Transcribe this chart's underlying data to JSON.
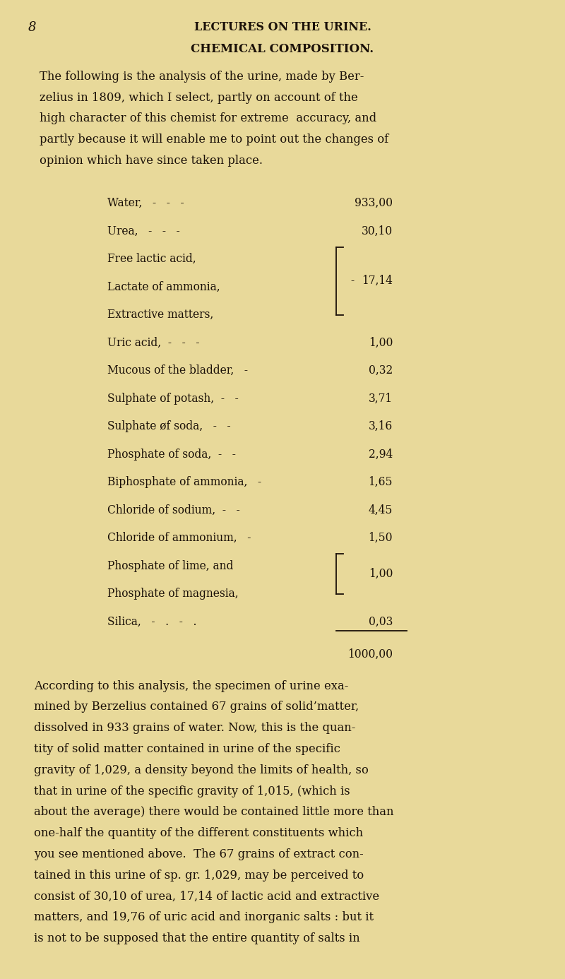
{
  "bg_color": "#e8d99a",
  "text_color": "#1a1008",
  "page_number": "8",
  "header": "LECTURES ON THE URINE.",
  "section_title": "CHEMICAL COMPOSITION.",
  "intro_text": [
    "The following is the analysis of the urine, made by Ber-",
    "zelius in 1809, which I select, partly on account of the",
    "high character of this chemist for extreme  accuracy, and",
    "partly because it will enable me to point out the changes of",
    "opinion which have since taken place."
  ],
  "table_rows": [
    {
      "label": "Water,   -   -   -",
      "value": "933,00",
      "bracket": null
    },
    {
      "label": "Urea,   -   -   -",
      "value": "30,10",
      "bracket": null
    },
    {
      "label": "Free lactic acid,",
      "value": null,
      "bracket": "top"
    },
    {
      "label": "Lactate of ammonia,",
      "value": null,
      "bracket": "mid"
    },
    {
      "label": "Extractive matters,",
      "value": null,
      "bracket": "bot"
    },
    {
      "label": "Uric acid,  -   -   -",
      "value": "1,00",
      "bracket": null
    },
    {
      "label": "Mucous of the bladder,   -",
      "value": "0,32",
      "bracket": null
    },
    {
      "label": "Sulphate of potash,  -   -",
      "value": "3,71",
      "bracket": null
    },
    {
      "label": "Sulphate øf soda,   -   -",
      "value": "3,16",
      "bracket": null
    },
    {
      "label": "Phosphate of soda,  -   -",
      "value": "2,94",
      "bracket": null
    },
    {
      "label": "Biphosphate of ammonia,   -",
      "value": "1,65",
      "bracket": null
    },
    {
      "label": "Chloride of sodium,  -   -",
      "value": "4,45",
      "bracket": null
    },
    {
      "label": "Chloride of ammonium,   -",
      "value": "1,50",
      "bracket": null
    },
    {
      "label": "Phosphate of lime, and",
      "value": null,
      "bracket": "top2"
    },
    {
      "label": "Phosphate of magnesia,",
      "value": null,
      "bracket": "bot2"
    },
    {
      "label": "Silica,   -   .   -   .",
      "value": "0,03",
      "bracket": null
    }
  ],
  "group1_value": "17,14",
  "group1_rows": [
    2,
    3,
    4
  ],
  "group2_value": "1,00",
  "group2_rows": [
    13,
    14
  ],
  "total_value": "1000,00",
  "body_text": [
    "According to this analysis, the specimen of urine exa-",
    "mined by Berzelius contained 67 grains of solid’matter,",
    "dissolved in 933 grains of water. Now, this is the quan-",
    "tity of solid matter contained in urine of the specific",
    "gravity of 1,029, a density beyond the limits of health, so",
    "that in urine of the specific gravity of 1,015, (which is",
    "about the average) there would be contained little more than",
    "one-half the quantity of the different constituents which",
    "you see mentioned above.  The 67 grains of extract con-",
    "tained in this urine of sp. gr. 1,029, may be perceived to",
    "consist of 30,10 of urea, 17,14 of lactic acid and extractive",
    "matters, and 19,76 of uric acid and inorganic salts : but it",
    "is not to be supposed that the entire quantity of salts in"
  ]
}
